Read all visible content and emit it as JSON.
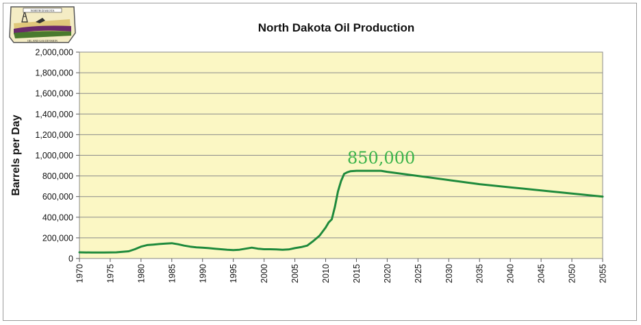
{
  "chart_data": {
    "type": "line",
    "title": "North Dakota Oil Production",
    "xlabel": "",
    "ylabel": "Barrels per Day",
    "xlim": [
      1970,
      2055
    ],
    "ylim": [
      0,
      2000000
    ],
    "y_ticks": [
      "0",
      "200,000",
      "400,000",
      "600,000",
      "800,000",
      "1,000,000",
      "1,200,000",
      "1,400,000",
      "1,600,000",
      "1,800,000",
      "2,000,000"
    ],
    "y_tick_values": [
      0,
      200000,
      400000,
      600000,
      800000,
      1000000,
      1200000,
      1400000,
      1600000,
      1800000,
      2000000
    ],
    "x_ticks": [
      "1970",
      "1975",
      "1980",
      "1985",
      "1990",
      "1995",
      "2000",
      "2005",
      "2010",
      "2015",
      "2020",
      "2025",
      "2030",
      "2035",
      "2040",
      "2045",
      "2050",
      "2055"
    ],
    "x_tick_values": [
      1970,
      1975,
      1980,
      1985,
      1990,
      1995,
      2000,
      2005,
      2010,
      2015,
      2020,
      2025,
      2030,
      2035,
      2040,
      2045,
      2050,
      2055
    ],
    "grid": true,
    "plot_background": "#fbf7c4",
    "line_color": "#1e8a3c",
    "series": [
      {
        "x": [
          1970,
          1972,
          1974,
          1976,
          1977,
          1978,
          1979,
          1980,
          1981,
          1982,
          1983,
          1984,
          1985,
          1986,
          1987,
          1988,
          1989,
          1990,
          1991,
          1992,
          1993,
          1994,
          1995,
          1996,
          1997,
          1998,
          1999,
          2000,
          2001,
          2002,
          2003,
          2004,
          2005,
          2006,
          2007,
          2008,
          2009,
          2010,
          2010.5,
          2011,
          2011.5,
          2012,
          2012.5,
          2013,
          2013.5,
          2014,
          2015,
          2017,
          2019,
          2020,
          2025,
          2030,
          2035,
          2040,
          2045,
          2050,
          2055
        ],
        "y": [
          60000,
          58000,
          58000,
          60000,
          65000,
          70000,
          90000,
          115000,
          130000,
          135000,
          140000,
          145000,
          148000,
          138000,
          125000,
          115000,
          108000,
          105000,
          100000,
          95000,
          90000,
          85000,
          82000,
          85000,
          95000,
          105000,
          95000,
          90000,
          90000,
          88000,
          85000,
          88000,
          100000,
          110000,
          125000,
          170000,
          220000,
          300000,
          350000,
          380000,
          500000,
          650000,
          750000,
          820000,
          835000,
          845000,
          850000,
          850000,
          850000,
          840000,
          800000,
          760000,
          720000,
          690000,
          660000,
          630000,
          600000
        ]
      }
    ],
    "annotations": [
      {
        "text": "850,000",
        "x": 2013.5,
        "y": 920000,
        "color": "#3bb34a"
      }
    ]
  },
  "logo": {
    "top_text": "NORTH DAKOTA",
    "bottom_text": "OIL AND GAS DIVISION"
  }
}
